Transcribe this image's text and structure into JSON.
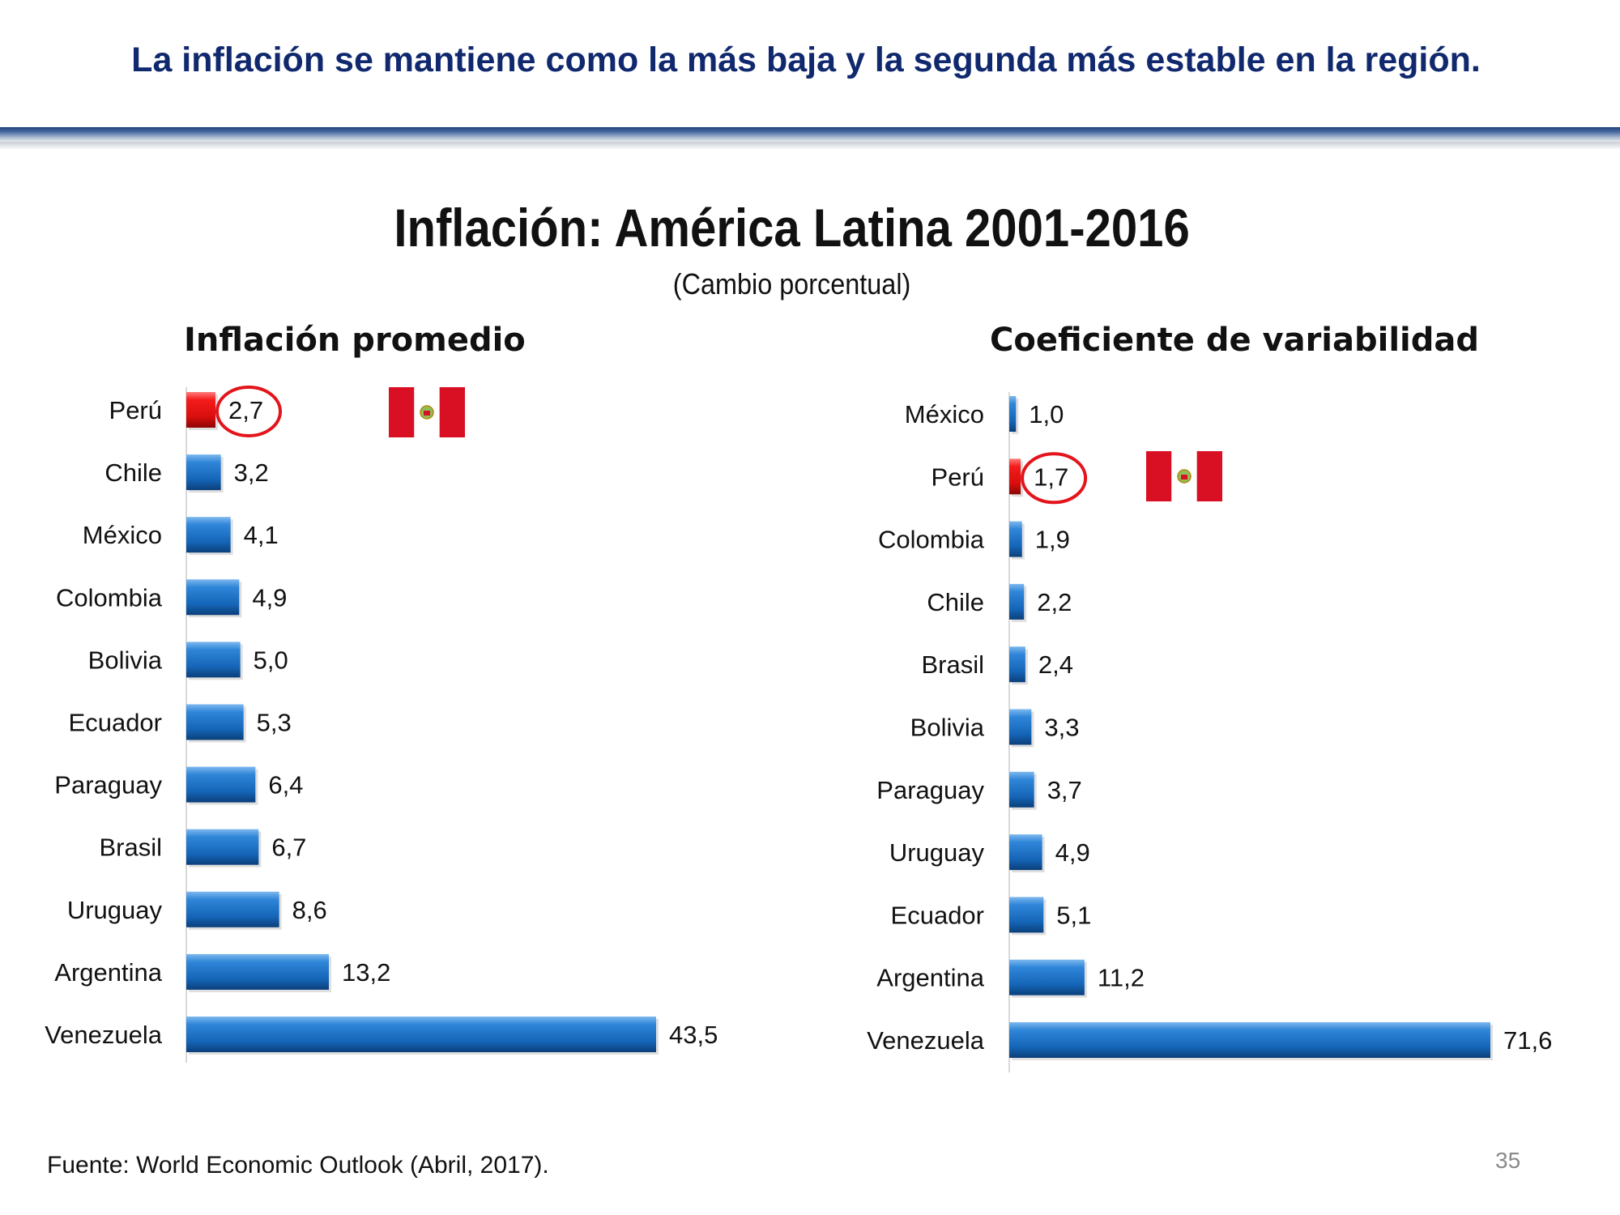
{
  "slide": {
    "headline": "La inflación se mantiene como la más baja y la segunda más estable en la región.",
    "title": "Inflación: América Latina 2001-2016",
    "subtitle": "(Cambio porcentual)",
    "source": "Fuente: World Economic Outlook (Abril, 2017).",
    "page_number": "35"
  },
  "colors": {
    "headline": "#10286e",
    "bar": "#1f72c6",
    "highlight_bar": "#e8141b",
    "circle": "#e3141b",
    "flag_red": "#d91023"
  },
  "chart_data": [
    {
      "type": "bar",
      "orientation": "horizontal",
      "title": "Inflación promedio",
      "categories": [
        "Perú",
        "Chile",
        "México",
        "Colombia",
        "Bolivia",
        "Ecuador",
        "Paraguay",
        "Brasil",
        "Uruguay",
        "Argentina",
        "Venezuela"
      ],
      "values": [
        2.7,
        3.2,
        4.1,
        4.9,
        5.0,
        5.3,
        6.4,
        6.7,
        8.6,
        13.2,
        43.5
      ],
      "labels": [
        "2,7",
        "3,2",
        "4,1",
        "4,9",
        "5,0",
        "5,3",
        "6,4",
        "6,7",
        "8,6",
        "13,2",
        "43,5"
      ],
      "highlight": "Perú",
      "xlabel": "",
      "ylabel": ""
    },
    {
      "type": "bar",
      "orientation": "horizontal",
      "title": "Coeficiente de variabilidad",
      "categories": [
        "México",
        "Perú",
        "Colombia",
        "Chile",
        "Brasil",
        "Bolivia",
        "Paraguay",
        "Uruguay",
        "Ecuador",
        "Argentina",
        "Venezuela"
      ],
      "values": [
        1.0,
        1.7,
        1.9,
        2.2,
        2.4,
        3.3,
        3.7,
        4.9,
        5.1,
        11.2,
        71.6
      ],
      "labels": [
        "1,0",
        "1,7",
        "1,9",
        "2,2",
        "2,4",
        "3,3",
        "3,7",
        "4,9",
        "5,1",
        "11,2",
        "71,6"
      ],
      "highlight": "Perú",
      "xlabel": "",
      "ylabel": ""
    }
  ]
}
